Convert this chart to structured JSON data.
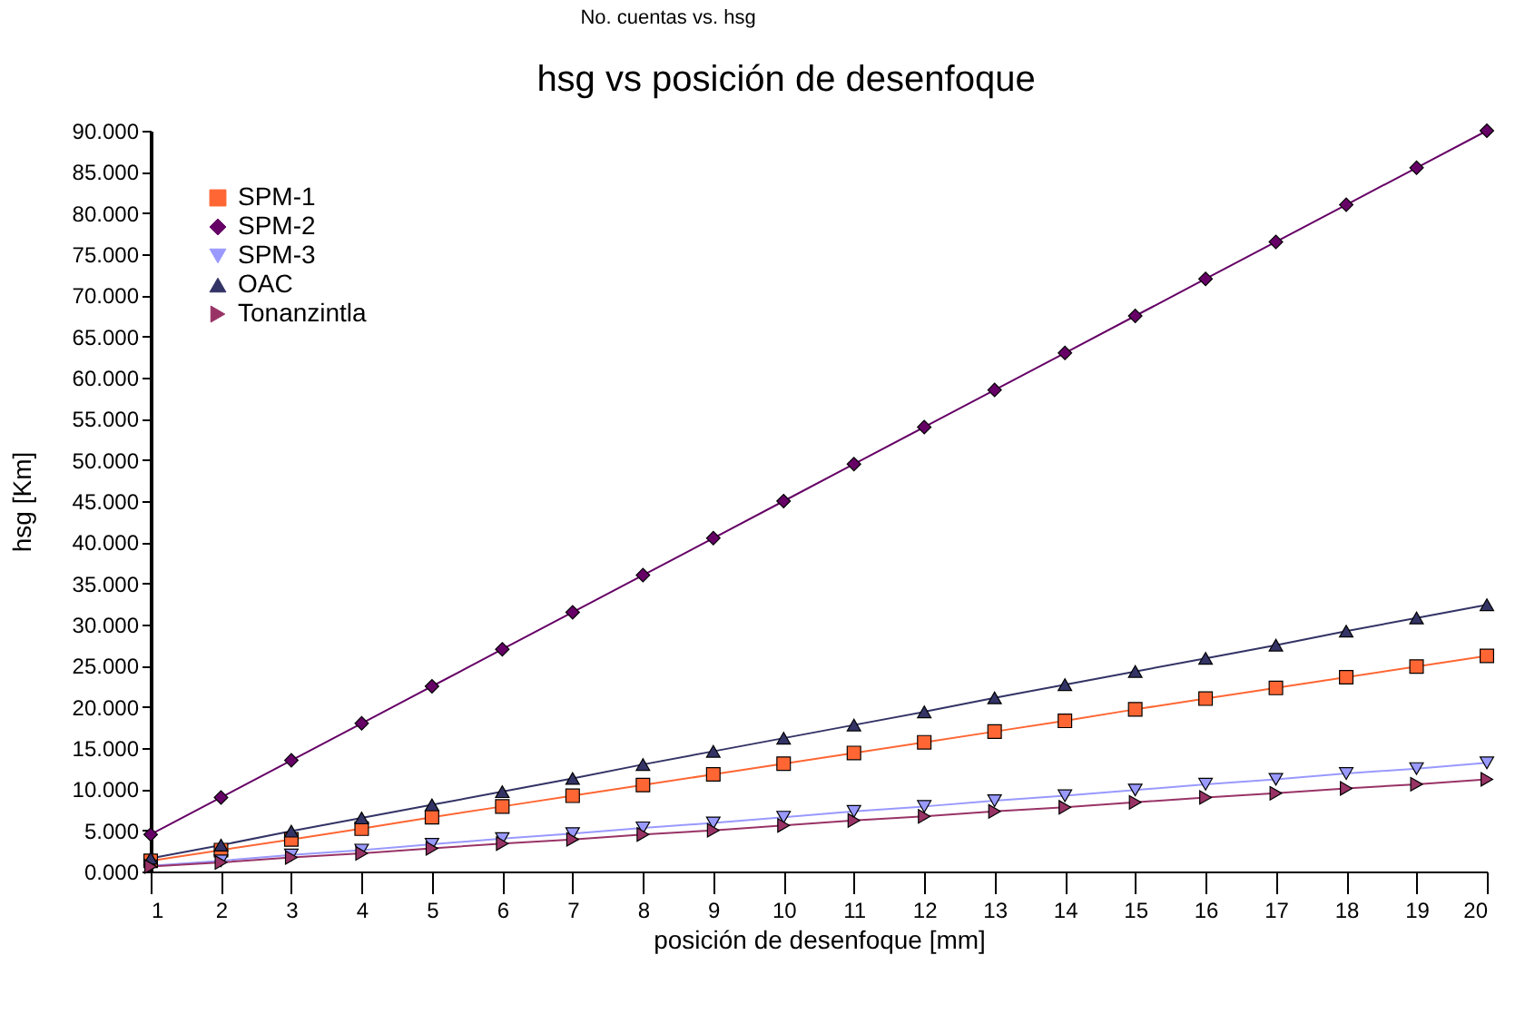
{
  "chart_data": {
    "type": "line",
    "title": "hsg vs posición de desenfoque",
    "annotations": [
      "No. cuentas vs. hsg"
    ],
    "xlabel": "posición de desenfoque     [mm]",
    "ylabel": "hsg      [Km]",
    "x": [
      1,
      2,
      3,
      4,
      5,
      6,
      7,
      8,
      9,
      10,
      11,
      12,
      13,
      14,
      15,
      16,
      17,
      18,
      19,
      20
    ],
    "series": [
      {
        "name": "SPM-1",
        "color": "#ff6633",
        "marker": "square",
        "values": [
          1.3,
          2.6,
          3.9,
          5.2,
          6.6,
          7.9,
          9.2,
          10.5,
          11.8,
          13.1,
          14.4,
          15.7,
          17.0,
          18.3,
          19.7,
          21.0,
          22.3,
          23.6,
          24.9,
          26.2
        ]
      },
      {
        "name": "SPM-2",
        "color": "#660066",
        "marker": "diamond",
        "values": [
          4.5,
          9.0,
          13.5,
          18.0,
          22.5,
          27.0,
          31.5,
          36.0,
          40.5,
          45.0,
          49.5,
          54.0,
          58.5,
          63.0,
          67.5,
          72.0,
          76.5,
          81.0,
          85.5,
          90.0
        ]
      },
      {
        "name": "SPM-3",
        "color": "#9999ff",
        "marker": "triangle-down",
        "values": [
          0.7,
          1.3,
          2.0,
          2.6,
          3.3,
          4.0,
          4.6,
          5.3,
          5.9,
          6.6,
          7.3,
          7.9,
          8.6,
          9.2,
          9.9,
          10.6,
          11.2,
          11.9,
          12.5,
          13.2
        ]
      },
      {
        "name": "OAC",
        "color": "#333366",
        "marker": "triangle-up",
        "values": [
          1.6,
          3.2,
          4.9,
          6.5,
          8.1,
          9.7,
          11.3,
          13.0,
          14.6,
          16.2,
          17.8,
          19.4,
          21.1,
          22.7,
          24.3,
          25.9,
          27.5,
          29.2,
          30.8,
          32.4
        ]
      },
      {
        "name": "Tonanzintla",
        "color": "#993366",
        "marker": "triangle-right",
        "values": [
          0.6,
          1.1,
          1.7,
          2.2,
          2.8,
          3.4,
          3.9,
          4.5,
          5.0,
          5.6,
          6.2,
          6.7,
          7.3,
          7.8,
          8.4,
          9.0,
          9.5,
          10.1,
          10.6,
          11.2
        ]
      }
    ],
    "xlim": [
      1,
      20
    ],
    "xticks": [
      1,
      2,
      3,
      4,
      5,
      6,
      7,
      8,
      9,
      10,
      11,
      12,
      13,
      14,
      15,
      16,
      17,
      18,
      19,
      20
    ],
    "ylim": [
      0,
      90
    ],
    "yticks": [
      {
        "value": 0,
        "label": "0.000"
      },
      {
        "value": 5,
        "label": "5.000"
      },
      {
        "value": 10,
        "label": "10.000"
      },
      {
        "value": 15,
        "label": "15.000"
      },
      {
        "value": 20,
        "label": "20.000"
      },
      {
        "value": 25,
        "label": "25.000"
      },
      {
        "value": 30,
        "label": "30.000"
      },
      {
        "value": 35,
        "label": "35.000"
      },
      {
        "value": 40,
        "label": "40.000"
      },
      {
        "value": 45,
        "label": "45.000"
      },
      {
        "value": 50,
        "label": "50.000"
      },
      {
        "value": 55,
        "label": "55.000"
      },
      {
        "value": 60,
        "label": "60.000"
      },
      {
        "value": 65,
        "label": "65.000"
      },
      {
        "value": 70,
        "label": "70.000"
      },
      {
        "value": 75,
        "label": "75.000"
      },
      {
        "value": 80,
        "label": "80.000"
      },
      {
        "value": 85,
        "label": "85.000"
      },
      {
        "value": 90,
        "label": "90.000"
      }
    ],
    "grid": false,
    "legend": "top left",
    "line_style": "solid"
  }
}
